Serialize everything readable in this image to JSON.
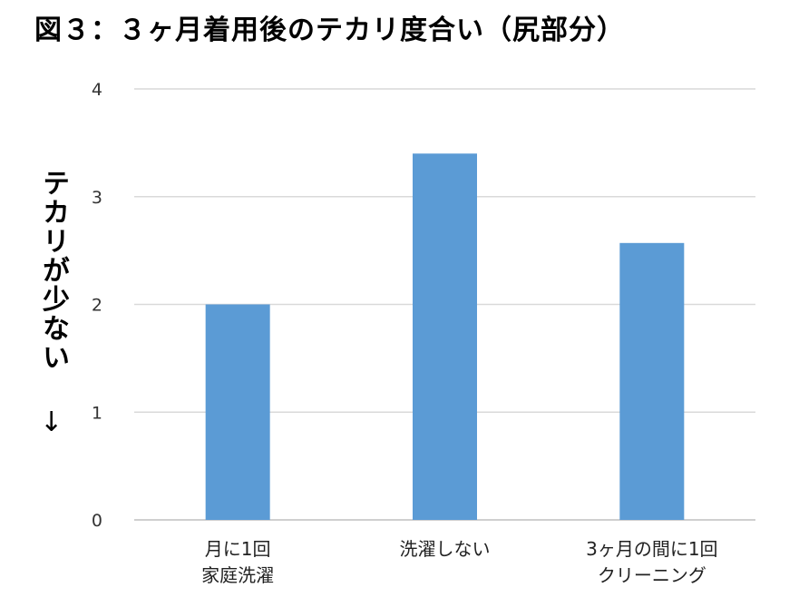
{
  "chart_data": {
    "type": "bar",
    "title": "図３：３ヶ月着用後のテカリ度合い（尻部分）",
    "ylabel": "テカリが少ない",
    "ylabel_arrow": "↓",
    "categories": [
      [
        "月に1回",
        "家庭洗濯"
      ],
      [
        "洗濯しない"
      ],
      [
        "3ヶ月の間に1回",
        "クリーニング"
      ]
    ],
    "values": [
      2.0,
      3.4,
      2.57
    ],
    "ylim": [
      0,
      4
    ],
    "yticks": [
      "0",
      "1",
      "2",
      "3",
      "4"
    ],
    "bar_color": "#5b9bd5",
    "grid": true
  }
}
